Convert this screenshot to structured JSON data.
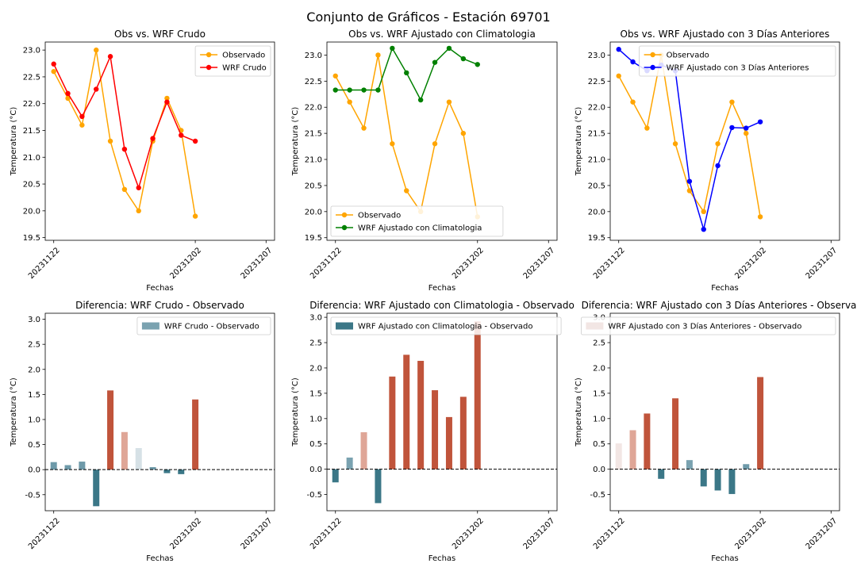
{
  "figure": {
    "title": "Conjunto de Gráficos - Estación 69701"
  },
  "colors": {
    "observado": "#ffa500",
    "wrf_crudo": "#ff0000",
    "wrf_climatologia": "#008000",
    "wrf_3dias": "#0000ff",
    "axes_edge": "#000000",
    "zero_line": "#000000"
  },
  "chart_data": [
    {
      "type": "line",
      "title": "Obs vs. WRF Crudo",
      "xlabel": "Fechas",
      "ylabel": "Temperatura (°C)",
      "x": [
        "20231122",
        "20231123",
        "20231124",
        "20231125",
        "20231126",
        "20231127",
        "20231128",
        "20231129",
        "20231130",
        "20231201",
        "20231202"
      ],
      "xticks": [
        "20231122",
        "20231202",
        "20231207"
      ],
      "ylim": [
        19.45,
        23.15
      ],
      "yticks": [
        "19.5",
        "20.0",
        "20.5",
        "21.0",
        "21.5",
        "22.0",
        "22.5",
        "23.0"
      ],
      "legend": "top-right",
      "series": [
        {
          "name": "Observado",
          "color": "#ffa500",
          "values": [
            22.6,
            22.1,
            21.6,
            23.0,
            21.3,
            20.4,
            20.0,
            21.3,
            22.1,
            21.5,
            19.9
          ]
        },
        {
          "name": "WRF Crudo",
          "color": "#ff0000",
          "values": [
            22.74,
            22.19,
            21.76,
            22.27,
            22.88,
            21.15,
            20.43,
            21.35,
            22.03,
            21.41,
            21.3
          ]
        }
      ]
    },
    {
      "type": "line",
      "title": "Obs vs. WRF Ajustado con Climatologia",
      "xlabel": "Fechas",
      "ylabel": "Temperatura (°C)",
      "x": [
        "20231122",
        "20231123",
        "20231124",
        "20231125",
        "20231126",
        "20231127",
        "20231128",
        "20231129",
        "20231130",
        "20231201",
        "20231202"
      ],
      "xticks": [
        "20231122",
        "20231202",
        "20231207"
      ],
      "ylim": [
        19.45,
        23.25
      ],
      "yticks": [
        "19.5",
        "20.0",
        "20.5",
        "21.0",
        "21.5",
        "22.0",
        "22.5",
        "23.0"
      ],
      "legend": "bottom-left",
      "series": [
        {
          "name": "Observado",
          "color": "#ffa500",
          "values": [
            22.6,
            22.1,
            21.6,
            23.0,
            21.3,
            20.4,
            20.0,
            21.3,
            22.1,
            21.5,
            19.9
          ]
        },
        {
          "name": "WRF Ajustado con Climatologia",
          "color": "#008000",
          "values": [
            22.33,
            22.33,
            22.33,
            22.33,
            23.13,
            22.66,
            22.14,
            22.86,
            23.13,
            22.93,
            22.82
          ]
        }
      ]
    },
    {
      "type": "line",
      "title": "Obs vs. WRF Ajustado con 3 Días Anteriores",
      "xlabel": "Fechas",
      "ylabel": "Temperatura (°C)",
      "x": [
        "20231122",
        "20231123",
        "20231124",
        "20231125",
        "20231126",
        "20231127",
        "20231128",
        "20231129",
        "20231130",
        "20231201",
        "20231202"
      ],
      "xticks": [
        "20231122",
        "20231202",
        "20231207"
      ],
      "ylim": [
        19.45,
        23.25
      ],
      "yticks": [
        "19.5",
        "20.0",
        "20.5",
        "21.0",
        "21.5",
        "22.0",
        "22.5",
        "23.0"
      ],
      "legend": "top-right",
      "series": [
        {
          "name": "Observado",
          "color": "#ffa500",
          "values": [
            22.6,
            22.1,
            21.6,
            23.0,
            21.3,
            20.4,
            20.0,
            21.3,
            22.1,
            21.5,
            19.9
          ]
        },
        {
          "name": "WRF Ajustado con 3 Días Anteriores",
          "color": "#0000ff",
          "values": [
            23.11,
            22.87,
            22.7,
            22.81,
            22.7,
            20.58,
            19.66,
            20.88,
            21.61,
            21.6,
            21.72
          ]
        }
      ]
    },
    {
      "type": "bar",
      "title": "Diferencia: WRF Crudo - Observado",
      "xlabel": "Fechas",
      "ylabel": "Temperatura (°C)",
      "x": [
        "20231122",
        "20231123",
        "20231124",
        "20231125",
        "20231126",
        "20231127",
        "20231128",
        "20231129",
        "20231130",
        "20231201",
        "20231202"
      ],
      "xticks": [
        "20231122",
        "20231202",
        "20231207"
      ],
      "ylim": [
        -0.82,
        3.12
      ],
      "yticks": [
        "-0.5",
        "0.0",
        "0.5",
        "1.0",
        "1.5",
        "2.0",
        "2.5",
        "3.0"
      ],
      "legend": "top-right",
      "series": [
        {
          "name": "WRF Crudo - Observado",
          "legend_color": "#7aa2b0",
          "values": [
            0.15,
            0.09,
            0.16,
            -0.73,
            1.58,
            0.75,
            0.43,
            0.05,
            -0.07,
            -0.09,
            1.4
          ],
          "colors": [
            "#6e9aa9",
            "#6e9aa9",
            "#6e9aa9",
            "#3b7787",
            "#c0543b",
            "#dfa697",
            "#d6e1e6",
            "#6e9aa9",
            "#3b7787",
            "#3b7787",
            "#c0543b"
          ]
        }
      ]
    },
    {
      "type": "bar",
      "title": "Diferencia: WRF Ajustado con Climatologia - Observado",
      "xlabel": "Fechas",
      "ylabel": "Temperatura (°C)",
      "x": [
        "20231122",
        "20231123",
        "20231124",
        "20231125",
        "20231126",
        "20231127",
        "20231128",
        "20231129",
        "20231130",
        "20231201",
        "20231202"
      ],
      "xticks": [
        "20231122",
        "20231202",
        "20231207"
      ],
      "ylim": [
        -0.82,
        3.08
      ],
      "yticks": [
        "-0.5",
        "0.0",
        "0.5",
        "1.0",
        "1.5",
        "2.0",
        "2.5",
        "3.0"
      ],
      "legend": "top-left",
      "series": [
        {
          "name": "WRF Ajustado con Climatologia - Observado",
          "legend_color": "#3b7787",
          "values": [
            -0.26,
            0.23,
            0.73,
            -0.67,
            1.83,
            2.26,
            2.14,
            1.56,
            1.03,
            1.43,
            2.92
          ],
          "colors": [
            "#3b7787",
            "#7aa2b0",
            "#dfa697",
            "#3b7787",
            "#c0543b",
            "#c0543b",
            "#c0543b",
            "#c0543b",
            "#c0543b",
            "#c0543b",
            "#c0543b"
          ]
        }
      ]
    },
    {
      "type": "bar",
      "title": "Diferencia: WRF Ajustado con 3 Días Anteriores - Observado",
      "xlabel": "Fechas",
      "ylabel": "Temperatura (°C)",
      "x": [
        "20231122",
        "20231123",
        "20231124",
        "20231125",
        "20231126",
        "20231127",
        "20231128",
        "20231129",
        "20231130",
        "20231201",
        "20231202"
      ],
      "xticks": [
        "20231122",
        "20231202",
        "20231207"
      ],
      "ylim": [
        -0.82,
        3.08
      ],
      "yticks": [
        "-0.5",
        "0.0",
        "0.5",
        "1.0",
        "1.5",
        "2.0",
        "2.5",
        "3.0"
      ],
      "legend": "top-right",
      "series": [
        {
          "name": "WRF Ajustado con 3 Días Anteriores - Observado",
          "legend_color": "#f2e6e4",
          "values": [
            0.51,
            0.77,
            1.1,
            -0.19,
            1.4,
            0.18,
            -0.34,
            -0.42,
            -0.49,
            0.1,
            1.82
          ],
          "colors": [
            "#f2e6e4",
            "#dfa697",
            "#c0543b",
            "#3b7787",
            "#c0543b",
            "#7aa2b0",
            "#3b7787",
            "#3b7787",
            "#3b7787",
            "#6e9aa9",
            "#c0543b"
          ]
        }
      ]
    }
  ]
}
